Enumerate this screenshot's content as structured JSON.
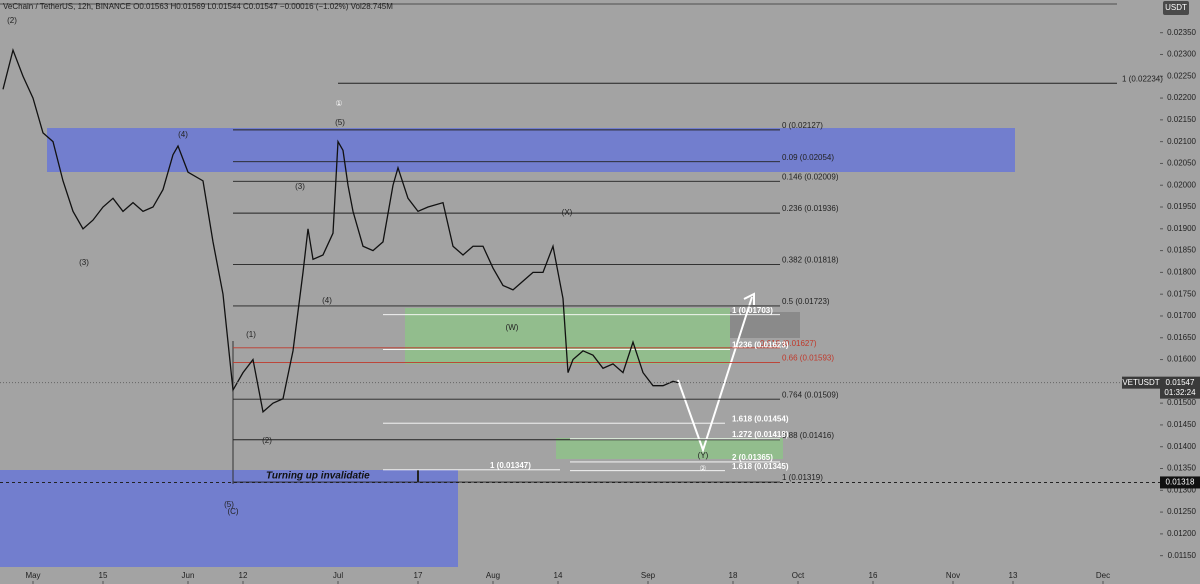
{
  "chart_data": {
    "type": "line",
    "header": "VeChain / TetherUS, 12h, BINANCE  O0.01563  H0.01569  L0.01544  C0.01547  −0.00016 (−1.02%)  Vol28.745M",
    "currency": "USDT",
    "symbol": "VETUSDT",
    "last_price": {
      "value": 0.01547,
      "label": "0.01547"
    },
    "countdown": "01:32:24",
    "invalidation_price": {
      "value": 0.01318,
      "label": "0.01318"
    },
    "invalidation_text": "Turning up  invalidatie",
    "color": "#111111",
    "xlim": [
      -6.6,
      225.4
    ],
    "ylim": [
      0.01085,
      0.02425
    ],
    "x": [
      -6,
      -4,
      -2,
      0,
      2,
      4,
      6,
      8,
      10,
      12,
      14,
      16,
      18,
      20,
      22,
      24,
      26,
      28,
      29,
      31,
      34,
      36,
      38,
      40,
      42,
      44,
      46,
      48,
      50,
      52,
      54,
      55,
      56,
      58,
      60,
      61,
      62,
      63,
      64,
      66,
      68,
      70,
      72,
      73,
      75,
      77,
      79,
      82,
      84,
      86,
      88,
      90,
      92,
      94,
      96,
      98,
      100,
      102,
      104,
      106,
      107,
      108,
      110,
      112,
      114,
      116,
      118,
      120,
      122,
      124,
      126,
      128,
      129
    ],
    "values": [
      0.0222,
      0.0231,
      0.0225,
      0.022,
      0.0212,
      0.021,
      0.0201,
      0.0194,
      0.019,
      0.0192,
      0.0195,
      0.0197,
      0.0194,
      0.0196,
      0.0194,
      0.0195,
      0.0199,
      0.0207,
      0.0209,
      0.0203,
      0.0201,
      0.0187,
      0.0175,
      0.0153,
      0.0157,
      0.016,
      0.0148,
      0.015,
      0.0151,
      0.0162,
      0.018,
      0.019,
      0.0183,
      0.0184,
      0.0189,
      0.021,
      0.0208,
      0.02,
      0.0194,
      0.0186,
      0.0185,
      0.0187,
      0.02,
      0.0204,
      0.0197,
      0.0194,
      0.0195,
      0.0196,
      0.0186,
      0.0184,
      0.0186,
      0.0186,
      0.0181,
      0.0177,
      0.0176,
      0.0178,
      0.018,
      0.018,
      0.0186,
      0.0174,
      0.0157,
      0.016,
      0.0162,
      0.0161,
      0.0158,
      0.0159,
      0.0157,
      0.0164,
      0.0157,
      0.0154,
      0.0154,
      0.0155,
      0.01547
    ],
    "xticks": [
      {
        "value": 0,
        "label": "May"
      },
      {
        "value": 14,
        "label": "15"
      },
      {
        "value": 31,
        "label": "Jun"
      },
      {
        "value": 42,
        "label": "12"
      },
      {
        "value": 61,
        "label": "Jul"
      },
      {
        "value": 77,
        "label": "17"
      },
      {
        "value": 92,
        "label": "Aug"
      },
      {
        "value": 105,
        "label": "14"
      },
      {
        "value": 123,
        "label": "Sep"
      },
      {
        "value": 140,
        "label": "18"
      },
      {
        "value": 153,
        "label": "Oct"
      },
      {
        "value": 168,
        "label": "16"
      },
      {
        "value": 184,
        "label": "Nov"
      },
      {
        "value": 196,
        "label": "13"
      },
      {
        "value": 214,
        "label": "Dec"
      }
    ],
    "yticks": [
      {
        "value": 0.0115,
        "label": "0.01150"
      },
      {
        "value": 0.012,
        "label": "0.01200"
      },
      {
        "value": 0.0125,
        "label": "0.01250"
      },
      {
        "value": 0.013,
        "label": "0.01300"
      },
      {
        "value": 0.0135,
        "label": "0.01350"
      },
      {
        "value": 0.014,
        "label": "0.01400"
      },
      {
        "value": 0.0145,
        "label": "0.01450"
      },
      {
        "value": 0.015,
        "label": "0.01500"
      },
      {
        "value": 0.0155,
        "label": "0.01550"
      },
      {
        "value": 0.016,
        "label": "0.01600"
      },
      {
        "value": 0.0165,
        "label": "0.01650"
      },
      {
        "value": 0.017,
        "label": "0.01700"
      },
      {
        "value": 0.0175,
        "label": "0.01750"
      },
      {
        "value": 0.018,
        "label": "0.01800"
      },
      {
        "value": 0.0185,
        "label": "0.01850"
      },
      {
        "value": 0.019,
        "label": "0.01900"
      },
      {
        "value": 0.0195,
        "label": "0.01950"
      },
      {
        "value": 0.02,
        "label": "0.02000"
      },
      {
        "value": 0.0205,
        "label": "0.02050"
      },
      {
        "value": 0.021,
        "label": "0.02100"
      },
      {
        "value": 0.0215,
        "label": "0.02150"
      },
      {
        "value": 0.022,
        "label": "0.02200"
      },
      {
        "value": 0.0225,
        "label": "0.02250"
      },
      {
        "value": 0.023,
        "label": "0.02300"
      },
      {
        "value": 0.0235,
        "label": "0.02350"
      }
    ],
    "levels": [
      {
        "value": 0.02127,
        "label": "0 (0.02127)",
        "color": "#222222"
      },
      {
        "value": 0.02054,
        "label": "0.09 (0.02054)",
        "color": "#222222"
      },
      {
        "value": 0.02009,
        "label": "0.146 (0.02009)",
        "color": "#222222"
      },
      {
        "value": 0.01936,
        "label": "0.236 (0.01936)",
        "color": "#222222"
      },
      {
        "value": 0.01818,
        "label": "0.382 (0.01818)",
        "color": "#222222"
      },
      {
        "value": 0.01723,
        "label": "0.5 (0.01723)",
        "color": "#222222"
      },
      {
        "value": 0.01627,
        "label": "0.618 (0.01627)",
        "color": "#c0392b"
      },
      {
        "value": 0.01593,
        "label": "0.66 (0.01593)",
        "color": "#c0392b"
      },
      {
        "value": 0.01509,
        "label": "0.764 (0.01509)",
        "color": "#222222"
      },
      {
        "value": 0.01416,
        "label": "0.88 (0.01416)",
        "color": "#222222"
      },
      {
        "value": 0.01319,
        "label": "1 (0.01319)",
        "color": "#222222"
      },
      {
        "value": 0.01703,
        "label": "1 (0.01703)",
        "color": "#ffffff"
      },
      {
        "value": 0.01623,
        "label": "1.236 (0.01623)",
        "color": "#ffffff"
      },
      {
        "value": 0.01454,
        "label": "1.618 (0.01454)",
        "color": "#ffffff"
      },
      {
        "value": 0.01418,
        "label": "1.272 (0.01418)",
        "color": "#ffffff"
      },
      {
        "value": 0.01365,
        "label": "2 (0.01365)",
        "color": "#ffffff"
      },
      {
        "value": 0.01345,
        "label": "1.618 (0.01345)",
        "color": "#ffffff"
      },
      {
        "value": 0.01347,
        "label": "1 (0.01347)",
        "color": "#ffffff"
      },
      {
        "value": 0.02234,
        "label": "1 (0.02234)",
        "color": "#222222"
      }
    ],
    "wave_labels": [
      "(2)",
      "(3)",
      "(4)",
      "(3)",
      "(4)",
      "(5)",
      "①",
      "(1)",
      "(2)",
      "(5)",
      "(C)",
      "(X)",
      "(W)",
      "(Y)",
      "②"
    ]
  }
}
